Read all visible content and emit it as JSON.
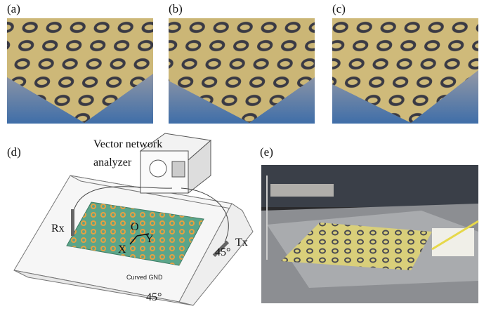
{
  "panels": {
    "a": "(a)",
    "b": "(b)",
    "c": "(c)",
    "d": "(d)",
    "e": "(e)"
  },
  "diagram": {
    "instrument_line1": "Vector network",
    "instrument_line2": "analyzer",
    "rx": "Rx",
    "tx": "Tx",
    "origin": "O",
    "y_axis": "Y",
    "x_axis": "X",
    "angle_right": "45°",
    "angle_bottom": "45°",
    "ground": "Curved GND"
  }
}
